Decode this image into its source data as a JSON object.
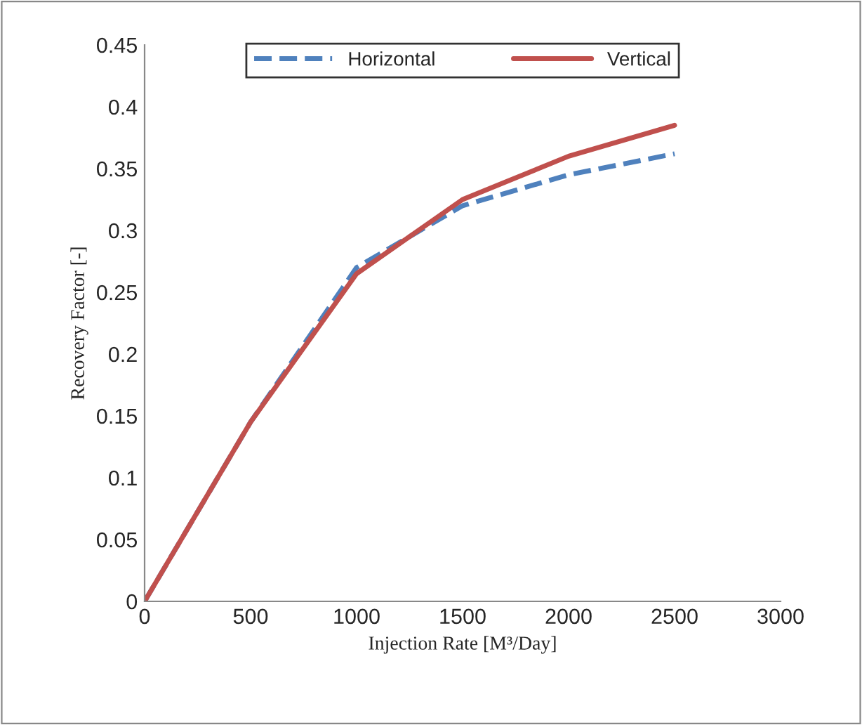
{
  "chart_data": {
    "type": "line",
    "xlabel": "Injection Rate [M³/Day]",
    "ylabel": "Recovery Factor [-]",
    "x": [
      0,
      500,
      1000,
      1500,
      2000,
      2500
    ],
    "series": [
      {
        "name": "Horizontal",
        "color": "#4f81bd",
        "line_style": "dashed",
        "values": [
          0,
          0.145,
          0.27,
          0.32,
          0.345,
          0.362
        ]
      },
      {
        "name": "Vertical",
        "color": "#c0504d",
        "line_style": "solid",
        "values": [
          0,
          0.145,
          0.265,
          0.325,
          0.36,
          0.385
        ]
      }
    ],
    "xlim": [
      0,
      3000
    ],
    "xticks": [
      0,
      500,
      1000,
      1500,
      2000,
      2500,
      3000
    ],
    "ylim": [
      0,
      0.45
    ],
    "yticks": [
      0,
      0.05,
      0.1,
      0.15,
      0.2,
      0.25,
      0.3,
      0.35,
      0.4,
      0.45
    ],
    "grid": false,
    "legend": "top",
    "marker": "none"
  }
}
